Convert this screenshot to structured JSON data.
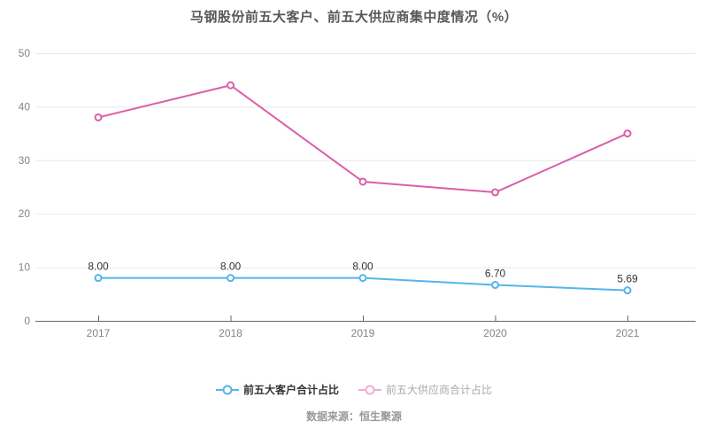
{
  "title": "马钢股份前五大客户、前五大供应商集中度情况（%）",
  "source": "数据来源：恒生聚源",
  "colors": {
    "grid": "#e4eaf2",
    "axis": "#666666",
    "tick_label": "#848484",
    "data_label": "#333333",
    "background": "#ffffff",
    "customer_line": "#54b5ea",
    "supplier_line": "#db5fa9"
  },
  "legend": [
    {
      "label": "前五大客户合计占比",
      "color": "#54b5ea",
      "text_color": "#333333",
      "bold": true
    },
    {
      "label": "前五大供应商合计占比",
      "color": "#f2abd2",
      "text_color": "#aaaaaa",
      "bold": false
    }
  ],
  "chart_data": {
    "type": "line",
    "title": "马钢股份前五大客户、前五大供应商集中度情况（%）",
    "x": [
      "2017",
      "2018",
      "2019",
      "2020",
      "2021"
    ],
    "series": [
      {
        "name": "前五大客户合计占比",
        "values": [
          8.0,
          8.0,
          8.0,
          6.7,
          5.69
        ],
        "labels": [
          "8.00",
          "8.00",
          "8.00",
          "6.70",
          "5.69"
        ],
        "color": "#54b5ea",
        "show_labels": true
      },
      {
        "name": "前五大供应商合计占比",
        "values": [
          38,
          44,
          26,
          24,
          35
        ],
        "labels": [],
        "color": "#db5fa9",
        "show_labels": false
      }
    ],
    "ylim": [
      0,
      50
    ],
    "yticks": [
      0,
      10,
      20,
      30,
      40,
      50
    ],
    "grid": true,
    "legend_position": "bottom"
  }
}
